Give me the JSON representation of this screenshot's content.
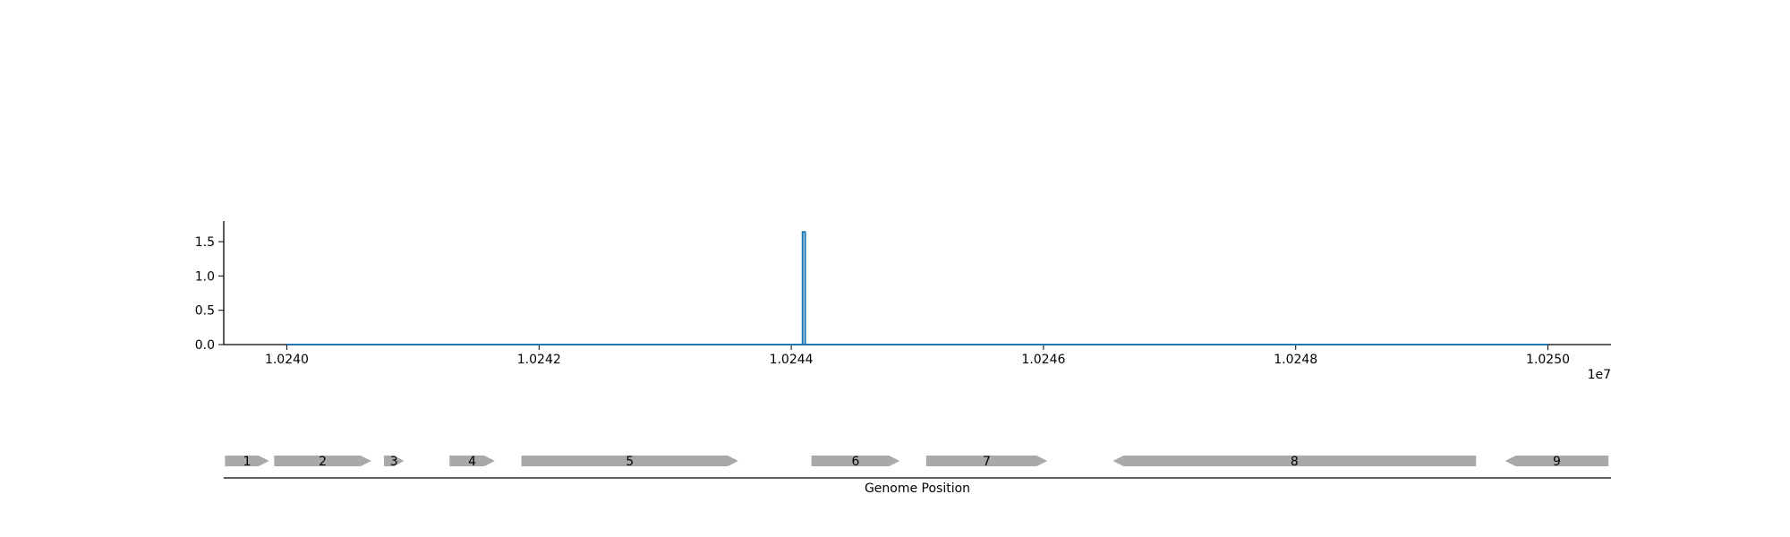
{
  "chart_data": [
    {
      "type": "line",
      "title": "",
      "xlabel": "",
      "ylabel": "",
      "x_offset_label": "1e7",
      "x_ticks": [
        10240000,
        10242000,
        10244000,
        10246000,
        10248000,
        10250000
      ],
      "x_tick_labels": [
        "1.0240",
        "1.0242",
        "1.0244",
        "1.0246",
        "1.0248",
        "1.0250"
      ],
      "y_ticks": [
        0.0,
        0.5,
        1.0,
        1.5
      ],
      "y_tick_labels": [
        "0.0",
        "0.5",
        "1.0",
        "1.5"
      ],
      "xlim": [
        10239500,
        10250500
      ],
      "ylim": [
        0,
        1.8
      ],
      "grid": false,
      "series": [
        {
          "color": "#1f77b4",
          "x": [
            10240000,
            10244090,
            10244090,
            10244110,
            10244110,
            10250000
          ],
          "y": [
            0,
            0,
            1.64,
            1.64,
            0,
            0
          ]
        }
      ]
    },
    {
      "type": "gene-track",
      "xlabel": "Genome Position",
      "xlim": [
        10239500,
        10250500
      ],
      "color": "#a9a9a9",
      "genes": [
        {
          "label": "1",
          "start": 10239510,
          "end": 10239860,
          "strand": "+"
        },
        {
          "label": "2",
          "start": 10239900,
          "end": 10240670,
          "strand": "+"
        },
        {
          "label": "3",
          "start": 10240770,
          "end": 10240930,
          "strand": "+"
        },
        {
          "label": "4",
          "start": 10241290,
          "end": 10241650,
          "strand": "+"
        },
        {
          "label": "5",
          "start": 10241860,
          "end": 10243580,
          "strand": "+"
        },
        {
          "label": "6",
          "start": 10244160,
          "end": 10244860,
          "strand": "+"
        },
        {
          "label": "7",
          "start": 10245070,
          "end": 10246030,
          "strand": "+"
        },
        {
          "label": "8",
          "start": 10246550,
          "end": 10249430,
          "strand": "-"
        },
        {
          "label": "9",
          "start": 10249660,
          "end": 10250480,
          "strand": "-"
        }
      ]
    }
  ]
}
